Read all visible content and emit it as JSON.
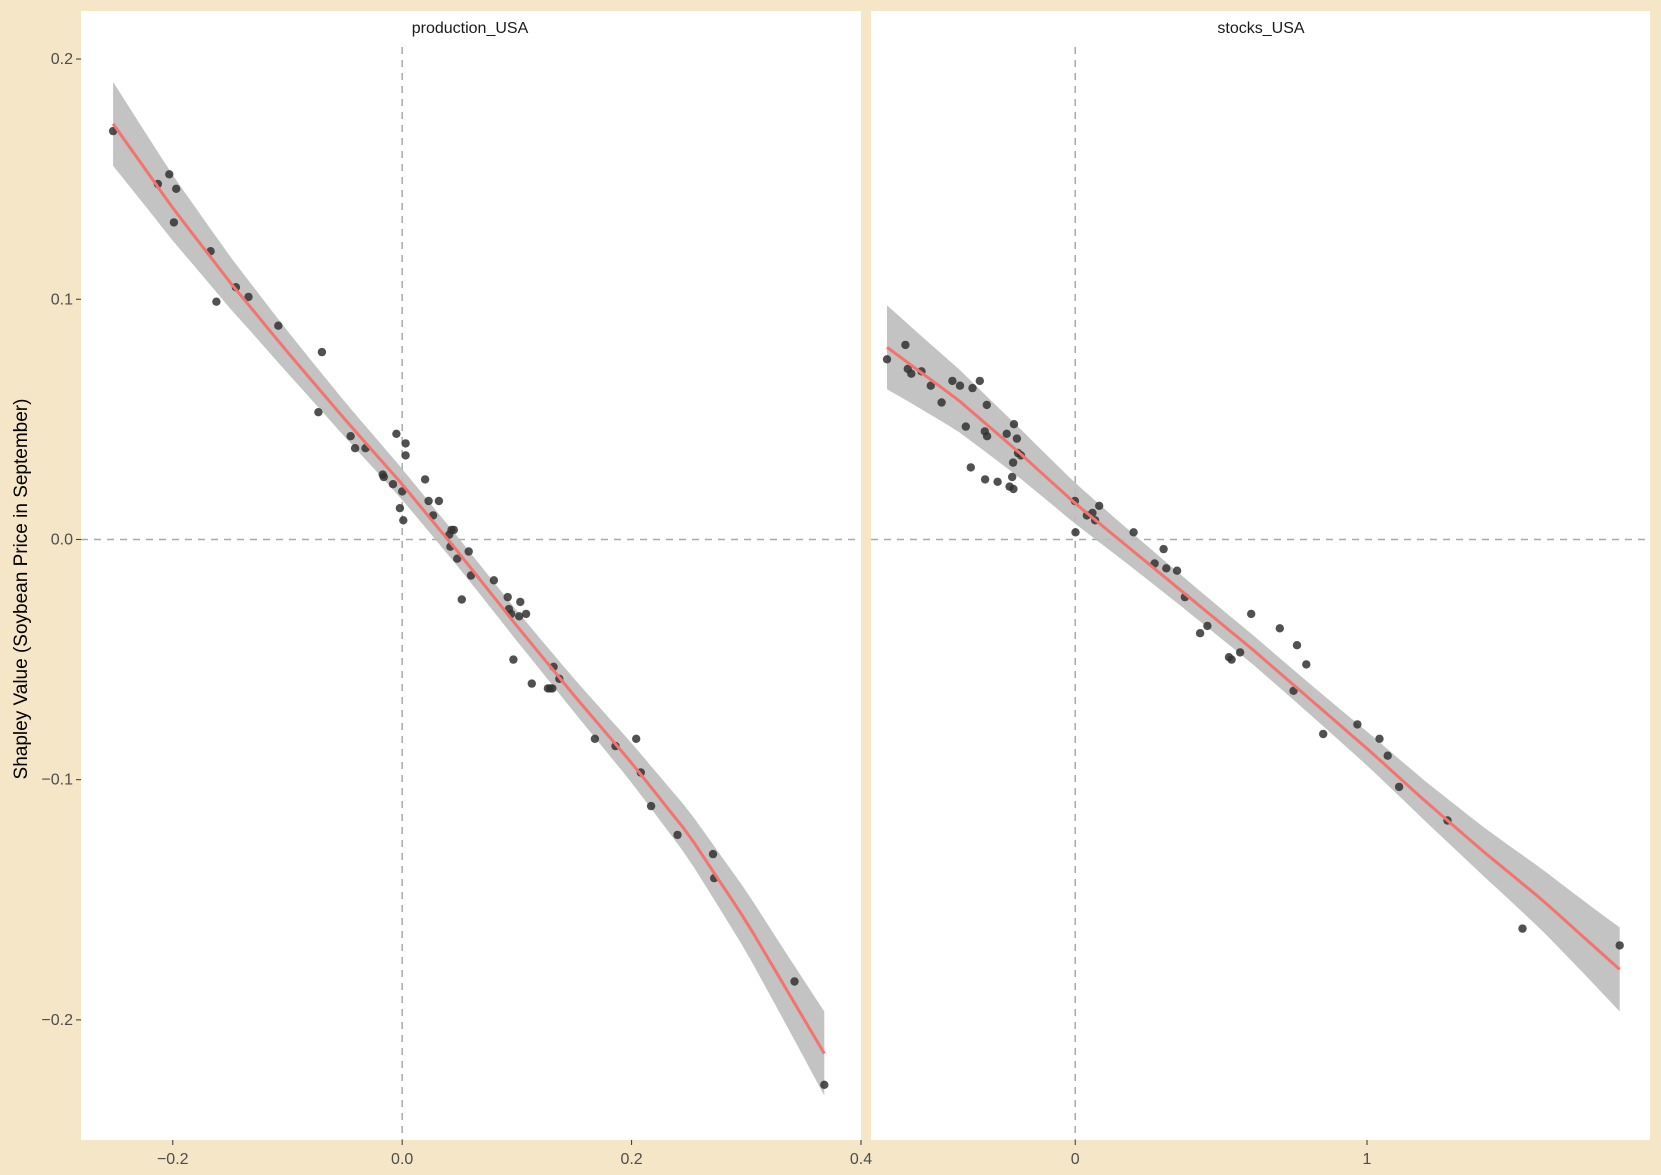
{
  "colors": {
    "background": "#f5e6c8",
    "panel": "#ffffff",
    "points": "#333333",
    "fit_line": "#f4736c",
    "ribbon": "#bdbdbd",
    "reference_lines": "#a9a9a9",
    "text": "#4d4d4d"
  },
  "chart_data": {
    "type": "scatter",
    "ylabel": "Shapley Value (Soybean Price in September)",
    "ylim": [
      -0.25,
      0.22
    ],
    "y_ticks": [
      -0.2,
      -0.1,
      0.0,
      0.1,
      0.2
    ],
    "y_tick_labels": [
      "−0.2",
      "−0.1",
      "0.0",
      "0.1",
      "0.2"
    ],
    "reference_lines": {
      "x": 0,
      "y": 0,
      "style": "dashed"
    },
    "grid": false,
    "smooth": "loess with confidence ribbon",
    "panels": [
      {
        "title": "production_USA",
        "xlim": [
          -0.28,
          0.4
        ],
        "x_ticks": [
          -0.2,
          0.0,
          0.2,
          0.4
        ],
        "x_tick_labels": [
          "−0.2",
          "0.0",
          "0.2",
          "0.4"
        ],
        "points": [
          [
            -0.252,
            0.17
          ],
          [
            -0.213,
            0.148
          ],
          [
            -0.203,
            0.152
          ],
          [
            -0.197,
            0.146
          ],
          [
            -0.199,
            0.132
          ],
          [
            -0.167,
            0.12
          ],
          [
            -0.162,
            0.099
          ],
          [
            -0.145,
            0.105
          ],
          [
            -0.134,
            0.101
          ],
          [
            -0.108,
            0.089
          ],
          [
            -0.07,
            0.078
          ],
          [
            -0.073,
            0.053
          ],
          [
            -0.045,
            0.043
          ],
          [
            -0.041,
            0.038
          ],
          [
            -0.032,
            0.038
          ],
          [
            -0.017,
            0.027
          ],
          [
            -0.016,
            0.026
          ],
          [
            -0.008,
            0.023
          ],
          [
            -0.005,
            0.044
          ],
          [
            -0.002,
            0.013
          ],
          [
            0.0,
            0.02
          ],
          [
            0.001,
            0.008
          ],
          [
            0.003,
            0.04
          ],
          [
            0.003,
            0.035
          ],
          [
            0.02,
            0.025
          ],
          [
            0.023,
            0.016
          ],
          [
            0.027,
            0.01
          ],
          [
            0.032,
            0.016
          ],
          [
            0.041,
            0.002
          ],
          [
            0.043,
            0.004
          ],
          [
            0.045,
            0.004
          ],
          [
            0.042,
            -0.003
          ],
          [
            0.048,
            -0.008
          ],
          [
            0.052,
            -0.025
          ],
          [
            0.058,
            -0.005
          ],
          [
            0.06,
            -0.015
          ],
          [
            0.08,
            -0.017
          ],
          [
            0.092,
            -0.024
          ],
          [
            0.093,
            -0.029
          ],
          [
            0.095,
            -0.031
          ],
          [
            0.097,
            -0.05
          ],
          [
            0.102,
            -0.032
          ],
          [
            0.103,
            -0.026
          ],
          [
            0.108,
            -0.031
          ],
          [
            0.113,
            -0.06
          ],
          [
            0.127,
            -0.062
          ],
          [
            0.129,
            -0.062
          ],
          [
            0.132,
            -0.053
          ],
          [
            0.131,
            -0.062
          ],
          [
            0.137,
            -0.058
          ],
          [
            0.168,
            -0.083
          ],
          [
            0.186,
            -0.086
          ],
          [
            0.204,
            -0.083
          ],
          [
            0.208,
            -0.097
          ],
          [
            0.217,
            -0.111
          ],
          [
            0.24,
            -0.123
          ],
          [
            0.271,
            -0.131
          ],
          [
            0.272,
            -0.141
          ],
          [
            0.342,
            -0.184
          ],
          [
            0.368,
            -0.227
          ]
        ],
        "fit": {
          "x": [
            -0.252,
            -0.2,
            -0.15,
            -0.1,
            -0.05,
            0.0,
            0.05,
            0.1,
            0.15,
            0.2,
            0.25,
            0.3,
            0.368
          ],
          "y": [
            0.173,
            0.138,
            0.107,
            0.078,
            0.05,
            0.023,
            -0.006,
            -0.036,
            -0.065,
            -0.093,
            -0.123,
            -0.159,
            -0.214
          ]
        }
      },
      {
        "title": "stocks_USA",
        "xlim": [
          -0.7,
          1.97
        ],
        "x_ticks": [
          0,
          1
        ],
        "x_tick_labels": [
          "0",
          "1"
        ],
        "points": [
          [
            -0.645,
            0.075
          ],
          [
            -0.582,
            0.081
          ],
          [
            -0.574,
            0.071
          ],
          [
            -0.562,
            0.069
          ],
          [
            -0.527,
            0.07
          ],
          [
            -0.495,
            0.064
          ],
          [
            -0.458,
            0.057
          ],
          [
            -0.421,
            0.066
          ],
          [
            -0.395,
            0.064
          ],
          [
            -0.352,
            0.063
          ],
          [
            -0.327,
            0.066
          ],
          [
            -0.375,
            0.047
          ],
          [
            -0.303,
            0.056
          ],
          [
            -0.31,
            0.045
          ],
          [
            -0.302,
            0.043
          ],
          [
            -0.235,
            0.044
          ],
          [
            -0.21,
            0.048
          ],
          [
            -0.2,
            0.042
          ],
          [
            -0.196,
            0.036
          ],
          [
            -0.186,
            0.035
          ],
          [
            -0.213,
            0.032
          ],
          [
            -0.309,
            0.025
          ],
          [
            -0.358,
            0.03
          ],
          [
            -0.266,
            0.024
          ],
          [
            -0.216,
            0.026
          ],
          [
            -0.225,
            0.022
          ],
          [
            -0.212,
            0.021
          ],
          [
            -0.001,
            0.016
          ],
          [
            0.001,
            0.003
          ],
          [
            0.04,
            0.01
          ],
          [
            0.059,
            0.011
          ],
          [
            0.068,
            0.008
          ],
          [
            0.082,
            0.014
          ],
          [
            0.2,
            0.003
          ],
          [
            0.272,
            -0.01
          ],
          [
            0.303,
            -0.004
          ],
          [
            0.312,
            -0.012
          ],
          [
            0.349,
            -0.013
          ],
          [
            0.376,
            -0.024
          ],
          [
            0.428,
            -0.039
          ],
          [
            0.453,
            -0.036
          ],
          [
            0.527,
            -0.049
          ],
          [
            0.536,
            -0.05
          ],
          [
            0.565,
            -0.047
          ],
          [
            0.603,
            -0.031
          ],
          [
            0.701,
            -0.037
          ],
          [
            0.748,
            -0.063
          ],
          [
            0.76,
            -0.044
          ],
          [
            0.792,
            -0.052
          ],
          [
            0.85,
            -0.081
          ],
          [
            0.967,
            -0.077
          ],
          [
            1.043,
            -0.083
          ],
          [
            1.071,
            -0.09
          ],
          [
            1.11,
            -0.103
          ],
          [
            1.276,
            -0.117
          ],
          [
            1.533,
            -0.162
          ],
          [
            1.866,
            -0.169
          ]
        ],
        "fit": {
          "x": [
            -0.645,
            -0.4,
            -0.2,
            0.0,
            0.2,
            0.4,
            0.6,
            0.8,
            1.0,
            1.2,
            1.4,
            1.6,
            1.866
          ],
          "y": [
            0.08,
            0.058,
            0.037,
            0.015,
            -0.005,
            -0.025,
            -0.045,
            -0.066,
            -0.087,
            -0.109,
            -0.13,
            -0.15,
            -0.179
          ]
        }
      }
    ]
  }
}
